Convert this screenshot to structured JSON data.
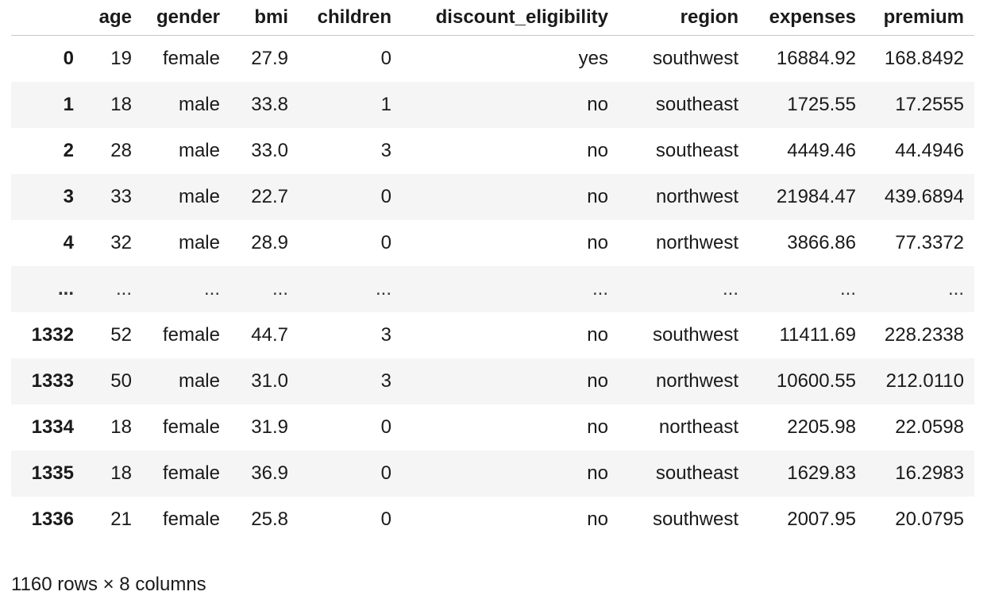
{
  "table": {
    "columns": [
      "",
      "age",
      "gender",
      "bmi",
      "children",
      "discount_eligibility",
      "region",
      "expenses",
      "premium"
    ],
    "rows": [
      [
        "0",
        "19",
        "female",
        "27.9",
        "0",
        "yes",
        "southwest",
        "16884.92",
        "168.8492"
      ],
      [
        "1",
        "18",
        "male",
        "33.8",
        "1",
        "no",
        "southeast",
        "1725.55",
        "17.2555"
      ],
      [
        "2",
        "28",
        "male",
        "33.0",
        "3",
        "no",
        "southeast",
        "4449.46",
        "44.4946"
      ],
      [
        "3",
        "33",
        "male",
        "22.7",
        "0",
        "no",
        "northwest",
        "21984.47",
        "439.6894"
      ],
      [
        "4",
        "32",
        "male",
        "28.9",
        "0",
        "no",
        "northwest",
        "3866.86",
        "77.3372"
      ],
      [
        "...",
        "...",
        "...",
        "...",
        "...",
        "...",
        "...",
        "...",
        "..."
      ],
      [
        "1332",
        "52",
        "female",
        "44.7",
        "3",
        "no",
        "southwest",
        "11411.69",
        "228.2338"
      ],
      [
        "1333",
        "50",
        "male",
        "31.0",
        "3",
        "no",
        "northwest",
        "10600.55",
        "212.0110"
      ],
      [
        "1334",
        "18",
        "female",
        "31.9",
        "0",
        "no",
        "northeast",
        "2205.98",
        "22.0598"
      ],
      [
        "1335",
        "18",
        "female",
        "36.9",
        "0",
        "no",
        "southeast",
        "1629.83",
        "16.2983"
      ],
      [
        "1336",
        "21",
        "female",
        "25.8",
        "0",
        "no",
        "southwest",
        "2007.95",
        "20.0795"
      ]
    ]
  },
  "shape_text": "1160 rows × 8 columns"
}
